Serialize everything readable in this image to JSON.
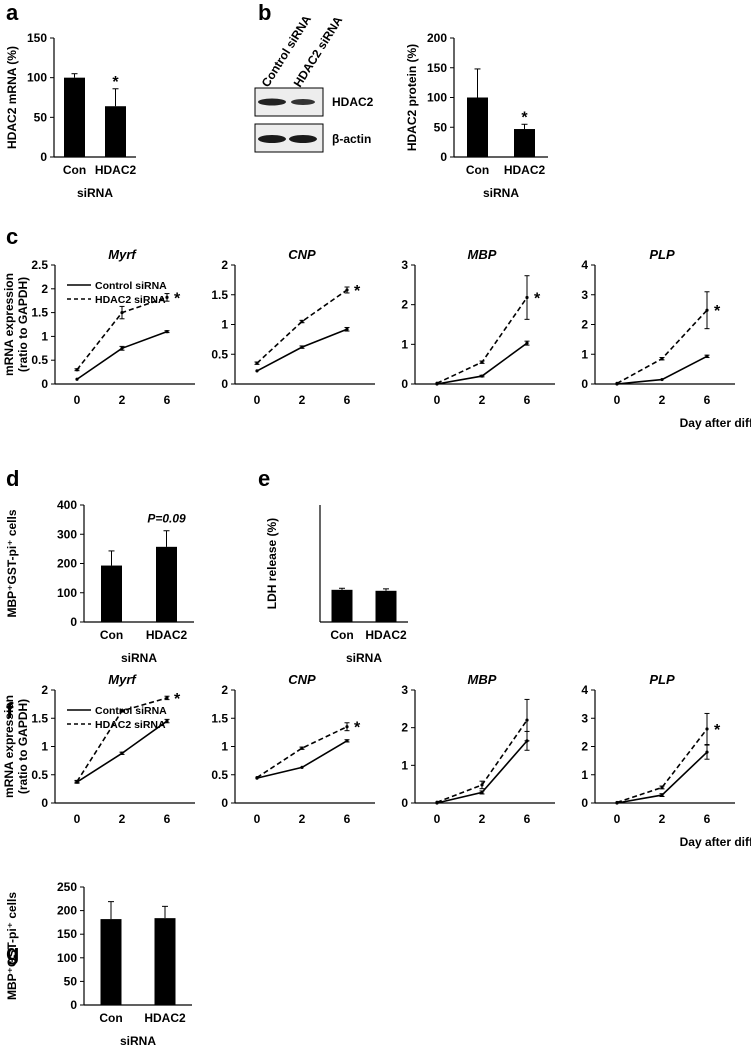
{
  "panel_letters": [
    "a",
    "b",
    "c",
    "d",
    "e",
    "f",
    "g"
  ],
  "blot": {
    "lane_labels": [
      "Control siRNA",
      "HDAC2 siRNA"
    ],
    "band_labels": [
      "HDAC2",
      "β-actin"
    ]
  },
  "chart_data": [
    {
      "id": "a",
      "type": "bar",
      "title": "",
      "ylabel": "HDAC2 mRNA (%)",
      "xlabel": "siRNA",
      "categories": [
        "Con",
        "HDAC2"
      ],
      "values": [
        100,
        64
      ],
      "errors": [
        5,
        22
      ],
      "ylim": [
        0,
        150
      ],
      "yticks": [
        0,
        50,
        100,
        150
      ],
      "annotations": [
        {
          "category": "HDAC2",
          "text": "*"
        }
      ]
    },
    {
      "id": "b",
      "type": "bar",
      "title": "",
      "ylabel": "HDAC2 protein (%)",
      "xlabel": "siRNA",
      "categories": [
        "Con",
        "HDAC2"
      ],
      "values": [
        100,
        47
      ],
      "errors": [
        48,
        8
      ],
      "ylim": [
        0,
        200
      ],
      "yticks": [
        0,
        50,
        100,
        150,
        200
      ],
      "annotations": [
        {
          "category": "HDAC2",
          "text": "*"
        }
      ]
    },
    {
      "id": "c-myrf",
      "type": "line",
      "title": "Myrf",
      "ylabel": "mRNA expression",
      "ylabel2": "(ratio to GAPDH)",
      "x": [
        0,
        2,
        6
      ],
      "ylim": [
        0,
        2.5
      ],
      "yticks": [
        0,
        0.5,
        1,
        1.5,
        2,
        2.5
      ],
      "legend": [
        "Control siRNA",
        "HDAC2 siRNA"
      ],
      "series": [
        {
          "name": "Control siRNA",
          "values": [
            0.1,
            0.75,
            1.1
          ],
          "errors": [
            0.01,
            0.04,
            0.02
          ]
        },
        {
          "name": "HDAC2 siRNA",
          "values": [
            0.3,
            1.5,
            1.82
          ],
          "errors": [
            0.02,
            0.13,
            0.08
          ]
        }
      ],
      "annotations": [
        {
          "x": 6,
          "text": "*"
        }
      ]
    },
    {
      "id": "c-cnp",
      "type": "line",
      "title": "CNP",
      "x": [
        0,
        2,
        6
      ],
      "ylim": [
        0,
        2
      ],
      "yticks": [
        0,
        0.5,
        1,
        1.5,
        2
      ],
      "series": [
        {
          "name": "Control siRNA",
          "values": [
            0.22,
            0.62,
            0.92
          ],
          "errors": [
            0.01,
            0.02,
            0.03
          ]
        },
        {
          "name": "HDAC2 siRNA",
          "values": [
            0.35,
            1.05,
            1.58
          ],
          "errors": [
            0.02,
            0.02,
            0.05
          ]
        }
      ],
      "annotations": [
        {
          "x": 6,
          "text": "*"
        }
      ]
    },
    {
      "id": "c-mbp",
      "type": "line",
      "title": "MBP",
      "x": [
        0,
        2,
        6
      ],
      "ylim": [
        0,
        3
      ],
      "yticks": [
        0,
        1,
        2,
        3
      ],
      "series": [
        {
          "name": "Control siRNA",
          "values": [
            0.0,
            0.2,
            1.03
          ],
          "errors": [
            0.01,
            0.02,
            0.05
          ]
        },
        {
          "name": "HDAC2 siRNA",
          "values": [
            0.02,
            0.55,
            2.18
          ],
          "errors": [
            0.01,
            0.03,
            0.55
          ]
        }
      ],
      "annotations": [
        {
          "x": 6,
          "text": "*"
        }
      ]
    },
    {
      "id": "c-plp",
      "type": "line",
      "title": "PLP",
      "xlabel": "Day after differentiation",
      "x": [
        0,
        2,
        6
      ],
      "ylim": [
        0,
        4
      ],
      "yticks": [
        0,
        1,
        2,
        3,
        4
      ],
      "series": [
        {
          "name": "Control siRNA",
          "values": [
            0.0,
            0.15,
            0.93
          ],
          "errors": [
            0.01,
            0.02,
            0.04
          ]
        },
        {
          "name": "HDAC2 siRNA",
          "values": [
            0.02,
            0.85,
            2.48
          ],
          "errors": [
            0.01,
            0.04,
            0.62
          ]
        }
      ],
      "annotations": [
        {
          "x": 6,
          "text": "*"
        }
      ]
    },
    {
      "id": "d",
      "type": "bar",
      "ylabel": "MBP⁺GST-pi⁺ cells",
      "xlabel": "siRNA",
      "categories": [
        "Con",
        "HDAC2"
      ],
      "values": [
        193,
        257
      ],
      "errors": [
        50,
        55
      ],
      "ylim": [
        0,
        400
      ],
      "yticks": [
        0,
        100,
        200,
        300,
        400
      ],
      "pvalue": "P=0.09"
    },
    {
      "id": "e",
      "type": "bar",
      "ylabel": "LDH release (%)",
      "xlabel": "siRNA",
      "categories": [
        "Con",
        "HDAC2"
      ],
      "values": [
        16.5,
        16
      ],
      "errors": [
        0.8,
        1
      ],
      "ylim": [
        0,
        60
      ]
    },
    {
      "id": "f-myrf",
      "type": "line",
      "title": "Myrf",
      "ylabel": "mRNA expression",
      "ylabel2": "(ratio to GAPDH)",
      "x": [
        0,
        2,
        6
      ],
      "ylim": [
        0,
        2
      ],
      "yticks": [
        0,
        0.5,
        1,
        1.5,
        2
      ],
      "legend": [
        "Control siRNA",
        "HDAC2 siRNA"
      ],
      "series": [
        {
          "name": "Control siRNA",
          "values": [
            0.37,
            0.88,
            1.45
          ],
          "errors": [
            0.02,
            0.02,
            0.03
          ]
        },
        {
          "name": "HDAC2 siRNA",
          "values": [
            0.38,
            1.63,
            1.86
          ],
          "errors": [
            0.02,
            0.02,
            0.03
          ]
        }
      ],
      "annotations": [
        {
          "x": 6,
          "text": "*"
        }
      ]
    },
    {
      "id": "f-cnp",
      "type": "line",
      "title": "CNP",
      "x": [
        0,
        2,
        6
      ],
      "ylim": [
        0,
        2
      ],
      "yticks": [
        0,
        0.5,
        1,
        1.5,
        2
      ],
      "series": [
        {
          "name": "Control siRNA",
          "values": [
            0.44,
            0.63,
            1.1
          ],
          "errors": [
            0.01,
            0.01,
            0.02
          ]
        },
        {
          "name": "HDAC2 siRNA",
          "values": [
            0.45,
            0.97,
            1.35
          ],
          "errors": [
            0.01,
            0.02,
            0.07
          ]
        }
      ],
      "annotations": [
        {
          "x": 6,
          "text": "*"
        }
      ]
    },
    {
      "id": "f-mbp",
      "type": "line",
      "title": "MBP",
      "x": [
        0,
        2,
        6
      ],
      "ylim": [
        0,
        3
      ],
      "yticks": [
        0,
        1,
        2,
        3
      ],
      "series": [
        {
          "name": "Control siRNA",
          "values": [
            0.0,
            0.28,
            1.65
          ],
          "errors": [
            0.01,
            0.04,
            0.25
          ]
        },
        {
          "name": "HDAC2 siRNA",
          "values": [
            0.02,
            0.48,
            2.2
          ],
          "errors": [
            0.01,
            0.1,
            0.55
          ]
        }
      ]
    },
    {
      "id": "f-plp",
      "type": "line",
      "title": "PLP",
      "xlabel": "Day after differentiation",
      "x": [
        0,
        2,
        6
      ],
      "ylim": [
        0,
        4
      ],
      "yticks": [
        0,
        1,
        2,
        3,
        4
      ],
      "series": [
        {
          "name": "Control siRNA",
          "values": [
            0.0,
            0.28,
            1.8
          ],
          "errors": [
            0.01,
            0.05,
            0.25
          ]
        },
        {
          "name": "HDAC2 siRNA",
          "values": [
            0.02,
            0.55,
            2.62
          ],
          "errors": [
            0.01,
            0.05,
            0.55
          ]
        }
      ],
      "annotations": [
        {
          "x": 6,
          "text": "*"
        }
      ]
    },
    {
      "id": "g",
      "type": "bar",
      "ylabel": "MBP⁺GST-pi⁺ cells",
      "xlabel": "siRNA",
      "categories": [
        "Con",
        "HDAC2"
      ],
      "values": [
        182,
        184
      ],
      "errors": [
        37,
        25
      ],
      "ylim": [
        0,
        250
      ],
      "yticks": [
        0,
        50,
        100,
        150,
        200,
        250
      ]
    }
  ]
}
